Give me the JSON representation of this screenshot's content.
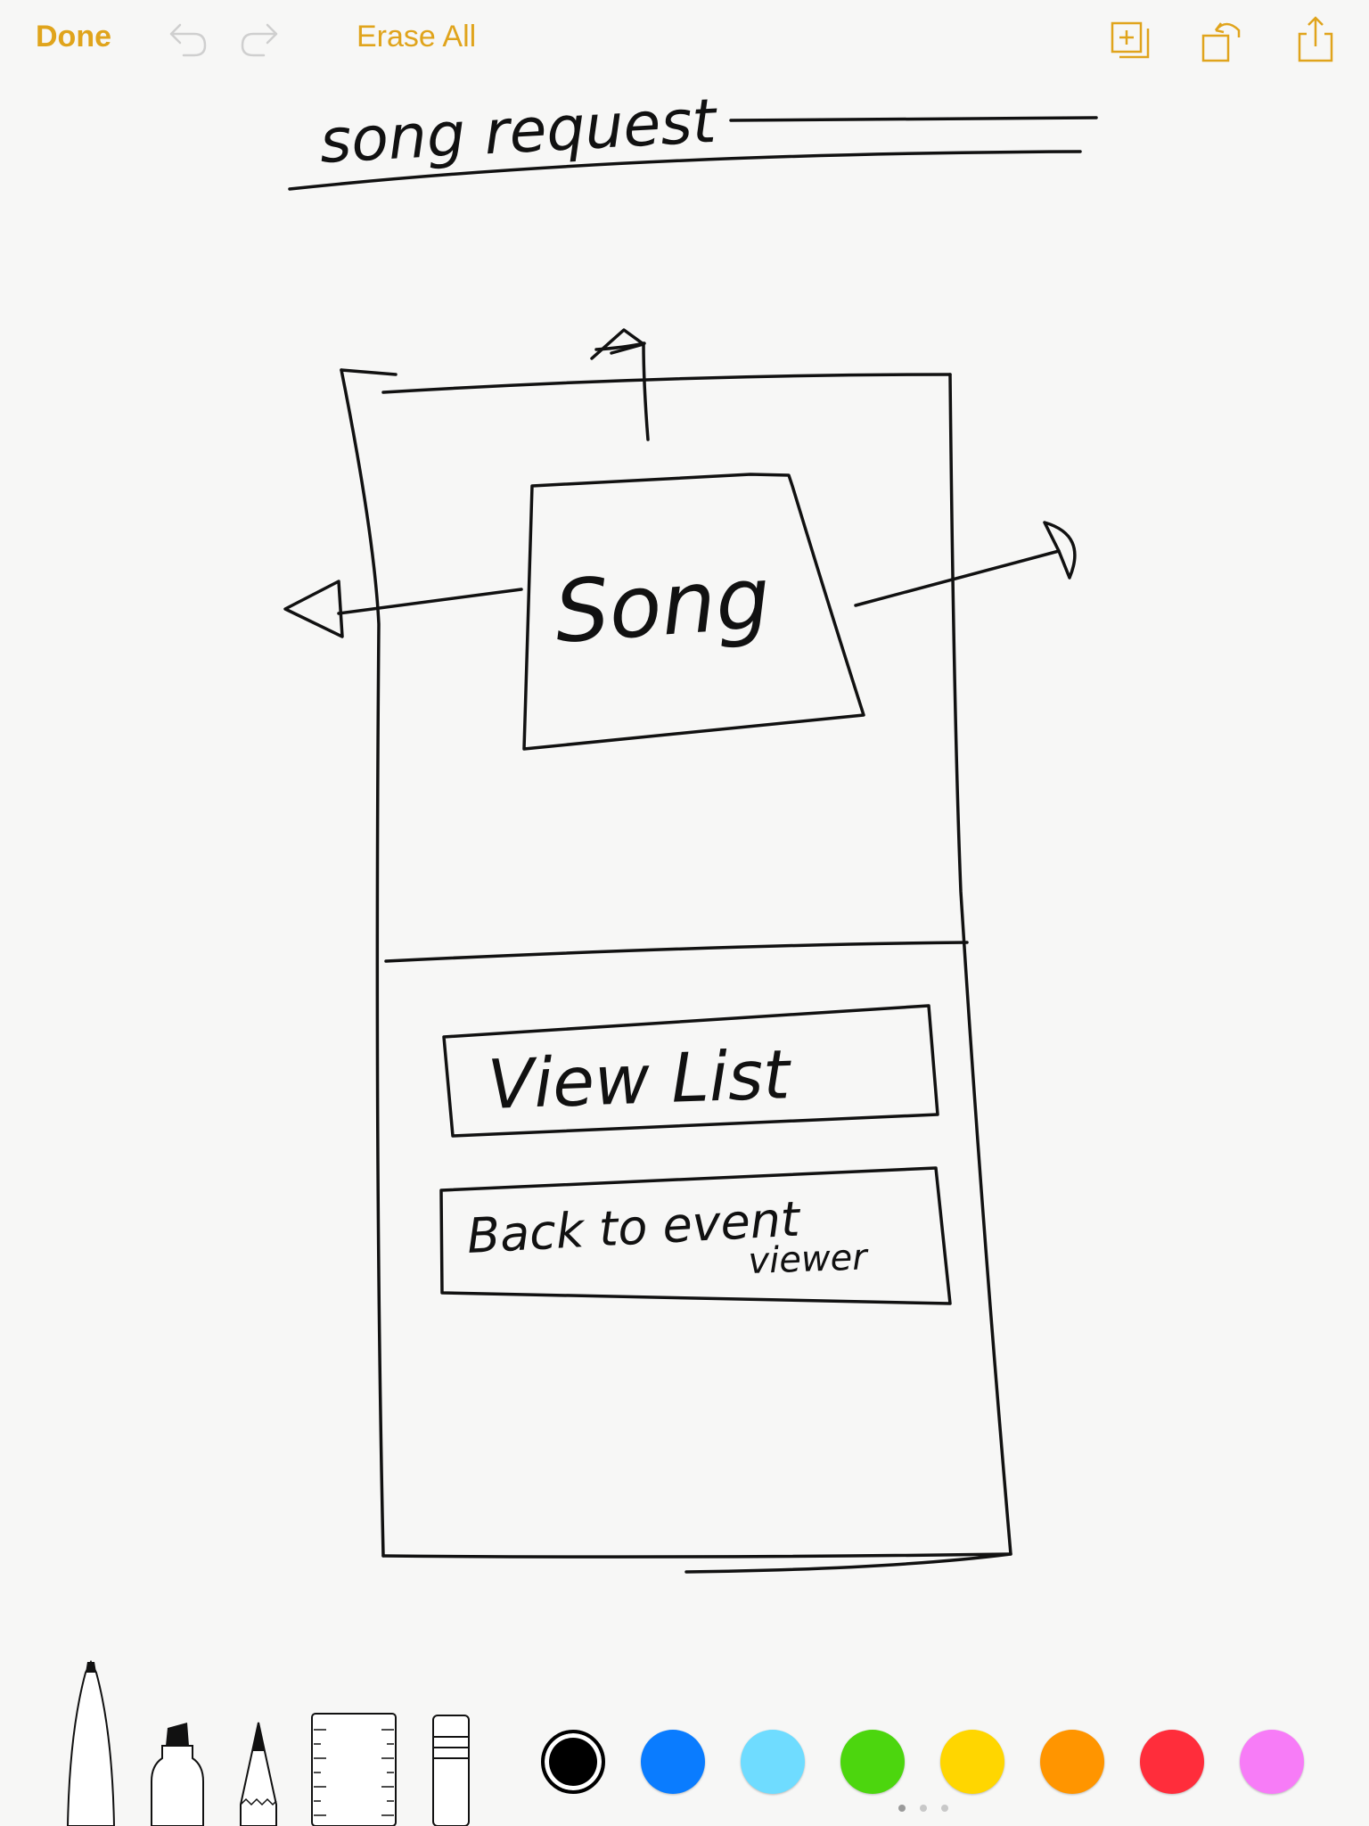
{
  "toolbar": {
    "done_label": "Done",
    "erase_label": "Erase All",
    "accent_color": "#e0a41c",
    "icons": [
      "undo-icon",
      "redo-icon",
      "add-page-icon",
      "rotate-icon",
      "share-icon"
    ]
  },
  "sketch": {
    "title": "song request",
    "box_label": "Song",
    "button1_label": "View List",
    "button2_label_line1": "Back to event",
    "button2_label_line2": "viewer"
  },
  "palette": {
    "tools": [
      "pen-tool",
      "marker-tool",
      "pencil-tool",
      "ruler-tool",
      "eraser-tool"
    ],
    "colors": [
      {
        "name": "black",
        "hex": "#000000",
        "selected": true
      },
      {
        "name": "blue",
        "hex": "#0a7cff"
      },
      {
        "name": "light-blue",
        "hex": "#6fdcff"
      },
      {
        "name": "green",
        "hex": "#4cd60e"
      },
      {
        "name": "yellow",
        "hex": "#ffd600"
      },
      {
        "name": "orange",
        "hex": "#ff9500"
      },
      {
        "name": "red",
        "hex": "#ff2d3b"
      },
      {
        "name": "pink",
        "hex": "#f77cf7"
      }
    ]
  }
}
